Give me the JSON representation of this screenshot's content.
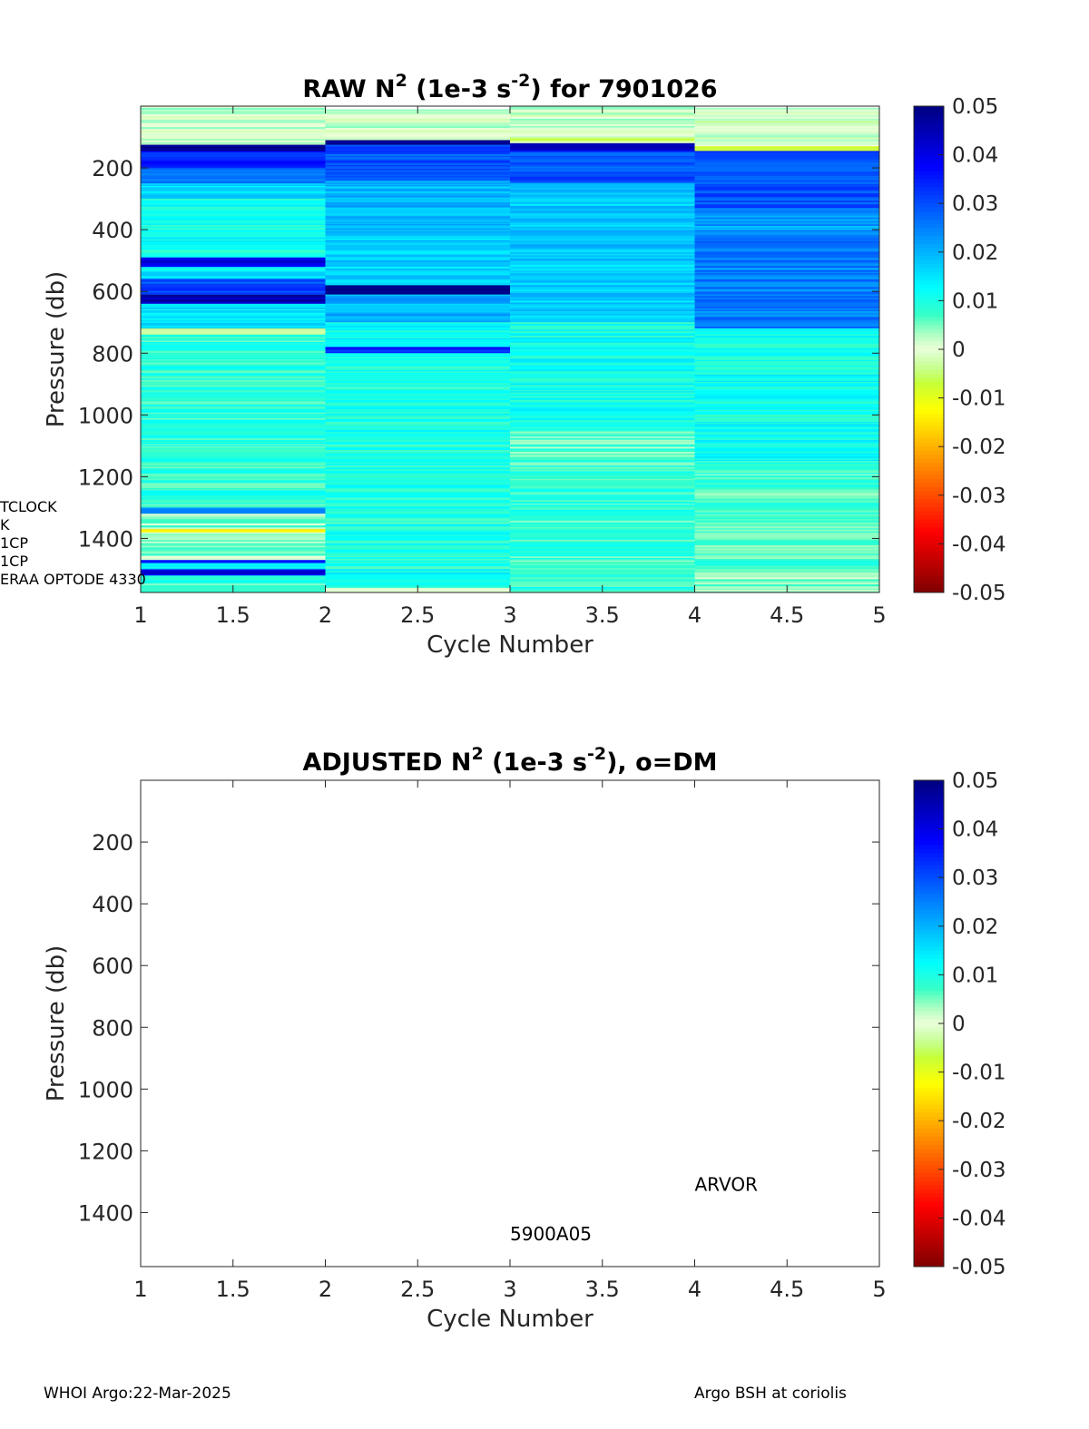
{
  "chart_data": [
    {
      "type": "heatmap",
      "title": {
        "prefix": "RAW N",
        "sup1": "2",
        "mid": " (1e-3 s",
        "sup2": "-2",
        "suffix": ") for 7901026"
      },
      "xlabel": "Cycle Number",
      "ylabel": "Pressure (db)",
      "xlim": [
        1,
        5
      ],
      "ylim": [
        0,
        1575
      ],
      "y_reversed": true,
      "x_ticks": [
        "1",
        "1.5",
        "2",
        "2.5",
        "3",
        "3.5",
        "4",
        "4.5",
        "5"
      ],
      "y_ticks": [
        "200",
        "400",
        "600",
        "800",
        "1000",
        "1200",
        "1400"
      ],
      "colorbar": {
        "range": [
          -0.05,
          0.05
        ],
        "colormap": "jet-white-center",
        "tick_labels": [
          "0.05",
          "0.04",
          "0.03",
          "0.02",
          "0.01",
          "0",
          "-0.01",
          "-0.02",
          "-0.03",
          "-0.04",
          "-0.05"
        ]
      },
      "columns": [
        {
          "cycle": 1,
          "x_range": [
            1,
            2
          ],
          "pressure_range": [
            0,
            1575
          ],
          "bands": [
            {
              "p": [
                0,
                125
              ],
              "n2": 0.001
            },
            {
              "p": [
                125,
                145
              ],
              "n2": 0.05
            },
            {
              "p": [
                145,
                200
              ],
              "n2": 0.035
            },
            {
              "p": [
                200,
                250
              ],
              "n2": 0.025
            },
            {
              "p": [
                250,
                300
              ],
              "n2": 0.015
            },
            {
              "p": [
                300,
                490
              ],
              "n2": 0.011
            },
            {
              "p": [
                490,
                520
              ],
              "n2": 0.04
            },
            {
              "p": [
                520,
                560
              ],
              "n2": 0.014
            },
            {
              "p": [
                560,
                610
              ],
              "n2": 0.03
            },
            {
              "p": [
                610,
                640
              ],
              "n2": 0.045
            },
            {
              "p": [
                640,
                720
              ],
              "n2": 0.015
            },
            {
              "p": [
                720,
                740
              ],
              "n2": -0.004
            },
            {
              "p": [
                740,
                1300
              ],
              "n2": 0.009
            },
            {
              "p": [
                1300,
                1320
              ],
              "n2": 0.022
            },
            {
              "p": [
                1320,
                1370
              ],
              "n2": 0.004
            },
            {
              "p": [
                1370,
                1380
              ],
              "n2": -0.012
            },
            {
              "p": [
                1380,
                1470
              ],
              "n2": 0.004
            },
            {
              "p": [
                1470,
                1480
              ],
              "n2": 0.035
            },
            {
              "p": [
                1480,
                1500
              ],
              "n2": 0.012
            },
            {
              "p": [
                1500,
                1520
              ],
              "n2": 0.04
            },
            {
              "p": [
                1520,
                1575
              ],
              "n2": 0.008
            }
          ]
        },
        {
          "cycle": 2,
          "x_range": [
            2,
            3
          ],
          "pressure_range": [
            10,
            1575
          ],
          "bands": [
            {
              "p": [
                10,
                110
              ],
              "n2": 0.001
            },
            {
              "p": [
                110,
                125
              ],
              "n2": 0.05
            },
            {
              "p": [
                125,
                240
              ],
              "n2": 0.03
            },
            {
              "p": [
                240,
                420
              ],
              "n2": 0.02
            },
            {
              "p": [
                420,
                580
              ],
              "n2": 0.017
            },
            {
              "p": [
                580,
                610
              ],
              "n2": 0.05
            },
            {
              "p": [
                610,
                700
              ],
              "n2": 0.02
            },
            {
              "p": [
                700,
                780
              ],
              "n2": 0.012
            },
            {
              "p": [
                780,
                800
              ],
              "n2": 0.035
            },
            {
              "p": [
                800,
                1500
              ],
              "n2": 0.01
            },
            {
              "p": [
                1500,
                1560
              ],
              "n2": 0.012
            },
            {
              "p": [
                1560,
                1575
              ],
              "n2": -0.003
            }
          ]
        },
        {
          "cycle": 3,
          "x_range": [
            3,
            4
          ],
          "pressure_range": [
            0,
            1575
          ],
          "bands": [
            {
              "p": [
                0,
                100
              ],
              "n2": 0.001
            },
            {
              "p": [
                100,
                120
              ],
              "n2": -0.004
            },
            {
              "p": [
                120,
                145
              ],
              "n2": 0.045
            },
            {
              "p": [
                145,
                250
              ],
              "n2": 0.03
            },
            {
              "p": [
                250,
                700
              ],
              "n2": 0.018
            },
            {
              "p": [
                700,
                1050
              ],
              "n2": 0.011
            },
            {
              "p": [
                1050,
                1150
              ],
              "n2": 0.006
            },
            {
              "p": [
                1150,
                1575
              ],
              "n2": 0.008
            }
          ]
        },
        {
          "cycle": 4,
          "x_range": [
            4,
            5
          ],
          "pressure_range": [
            5,
            1575
          ],
          "bands": [
            {
              "p": [
                5,
                130
              ],
              "n2": 0.0
            },
            {
              "p": [
                130,
                145
              ],
              "n2": -0.007
            },
            {
              "p": [
                145,
                330
              ],
              "n2": 0.03
            },
            {
              "p": [
                330,
                420
              ],
              "n2": 0.022
            },
            {
              "p": [
                420,
                720
              ],
              "n2": 0.025
            },
            {
              "p": [
                720,
                1150
              ],
              "n2": 0.011
            },
            {
              "p": [
                1150,
                1500
              ],
              "n2": 0.007
            },
            {
              "p": [
                1500,
                1575
              ],
              "n2": 0.004
            }
          ]
        }
      ]
    },
    {
      "type": "heatmap",
      "title": {
        "prefix": "ADJUSTED N",
        "sup1": "2",
        "mid": " (1e-3 s",
        "sup2": "-2",
        "suffix": "), o=DM"
      },
      "xlabel": "Cycle Number",
      "ylabel": "Pressure (db)",
      "xlim": [
        1,
        5
      ],
      "ylim": [
        0,
        1575
      ],
      "y_reversed": true,
      "x_ticks": [
        "1",
        "1.5",
        "2",
        "2.5",
        "3",
        "3.5",
        "4",
        "4.5",
        "5"
      ],
      "y_ticks": [
        "200",
        "400",
        "600",
        "800",
        "1000",
        "1200",
        "1400"
      ],
      "colorbar": {
        "range": [
          -0.05,
          0.05
        ],
        "colormap": "jet-white-center",
        "tick_labels": [
          "0.05",
          "0.04",
          "0.03",
          "0.02",
          "0.01",
          "0",
          "-0.01",
          "-0.02",
          "-0.03",
          "-0.04",
          "-0.05"
        ]
      },
      "columns": [],
      "annotations": [
        {
          "text": "ARVOR",
          "x": 4.0,
          "y": 1330
        },
        {
          "text": "5900A05",
          "x": 3.0,
          "y": 1490
        }
      ]
    }
  ],
  "side_notes": [
    "TCLOCK",
    "K",
    "1CP",
    "1CP",
    "ERAA OPTODE 4330"
  ],
  "footer": {
    "left": "WHOI Argo:22-Mar-2025",
    "right": "Argo BSH at coriolis"
  }
}
